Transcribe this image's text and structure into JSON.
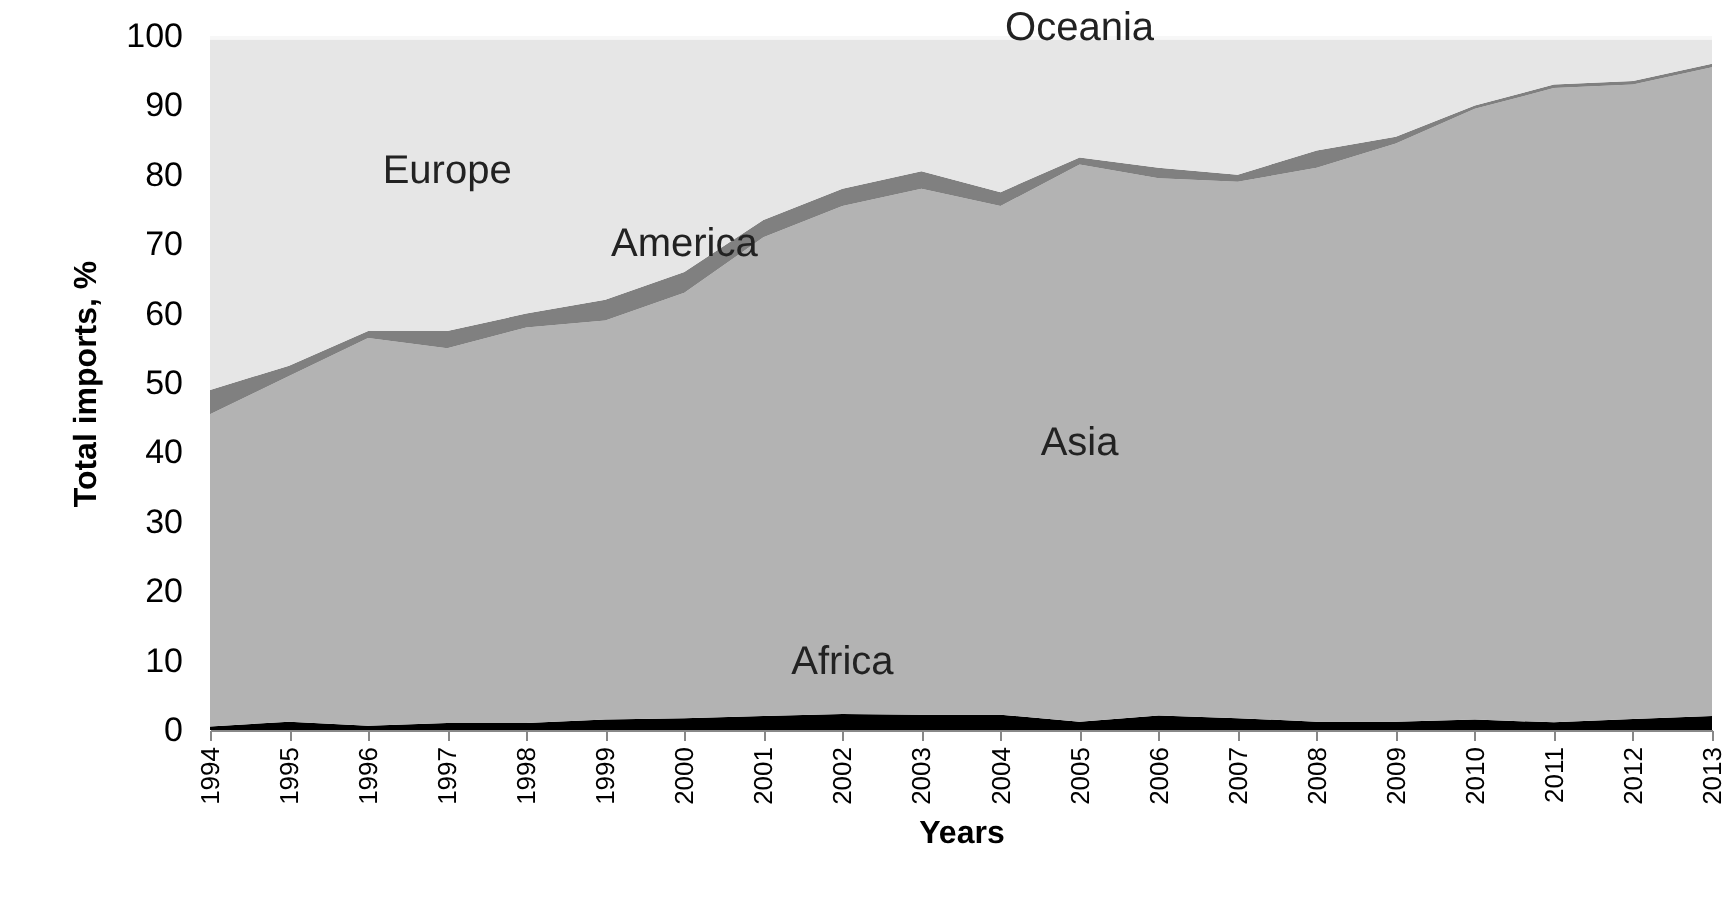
{
  "chart_data": {
    "type": "area",
    "stacked": true,
    "xlabel": "Years",
    "ylabel": "Total imports, %",
    "categories": [
      "1994",
      "1995",
      "1996",
      "1997",
      "1998",
      "1999",
      "2000",
      "2001",
      "2002",
      "2003",
      "2004",
      "2005",
      "2006",
      "2007",
      "2008",
      "2009",
      "2010",
      "2011",
      "2012",
      "2013"
    ],
    "ylim": [
      0,
      100
    ],
    "yticks": [
      0,
      10,
      20,
      30,
      40,
      50,
      60,
      70,
      80,
      90,
      100
    ],
    "grid": false,
    "legend": false,
    "series": [
      {
        "name": "Africa",
        "color": "#000000",
        "values": [
          0.5,
          1.2,
          0.6,
          1,
          1,
          1.5,
          1.7,
          2,
          2.3,
          2.2,
          2.2,
          1.2,
          2.1,
          1.7,
          1.2,
          1.2,
          1.5,
          1.1,
          1.6,
          2
        ]
      },
      {
        "name": "Asia",
        "color": "#b3b3b3",
        "values": [
          45.0,
          49.8,
          55.9,
          54.0,
          57.0,
          57.5,
          61.3,
          69.0,
          73.2,
          75.8,
          73.3,
          80.3,
          77.4,
          77.3,
          79.8,
          83.3,
          88.0,
          91.4,
          91.4,
          93.5
        ]
      },
      {
        "name": "America",
        "color": "#808080",
        "values": [
          3.5,
          1.5,
          1,
          2.5,
          2,
          3,
          3,
          2.5,
          2.5,
          2.5,
          2,
          1,
          1.5,
          1,
          2.5,
          1,
          0.5,
          0.5,
          0.5,
          0.5
        ]
      },
      {
        "name": "Europe",
        "color": "#e6e6e6",
        "values": [
          50.5,
          47,
          42,
          42,
          39.5,
          37.5,
          33.5,
          26,
          21.5,
          19,
          22,
          17,
          18.5,
          19.5,
          16,
          14,
          9.5,
          6.5,
          6,
          3.5
        ]
      },
      {
        "name": "Oceania",
        "color": "#f7f7f7",
        "values": [
          0.5,
          0.5,
          0.5,
          0.5,
          0.5,
          0.5,
          0.5,
          0.5,
          0.5,
          0.5,
          0.5,
          0.5,
          0.5,
          0.5,
          0.5,
          0.5,
          0.5,
          0.5,
          0.5,
          0.5
        ]
      }
    ]
  }
}
